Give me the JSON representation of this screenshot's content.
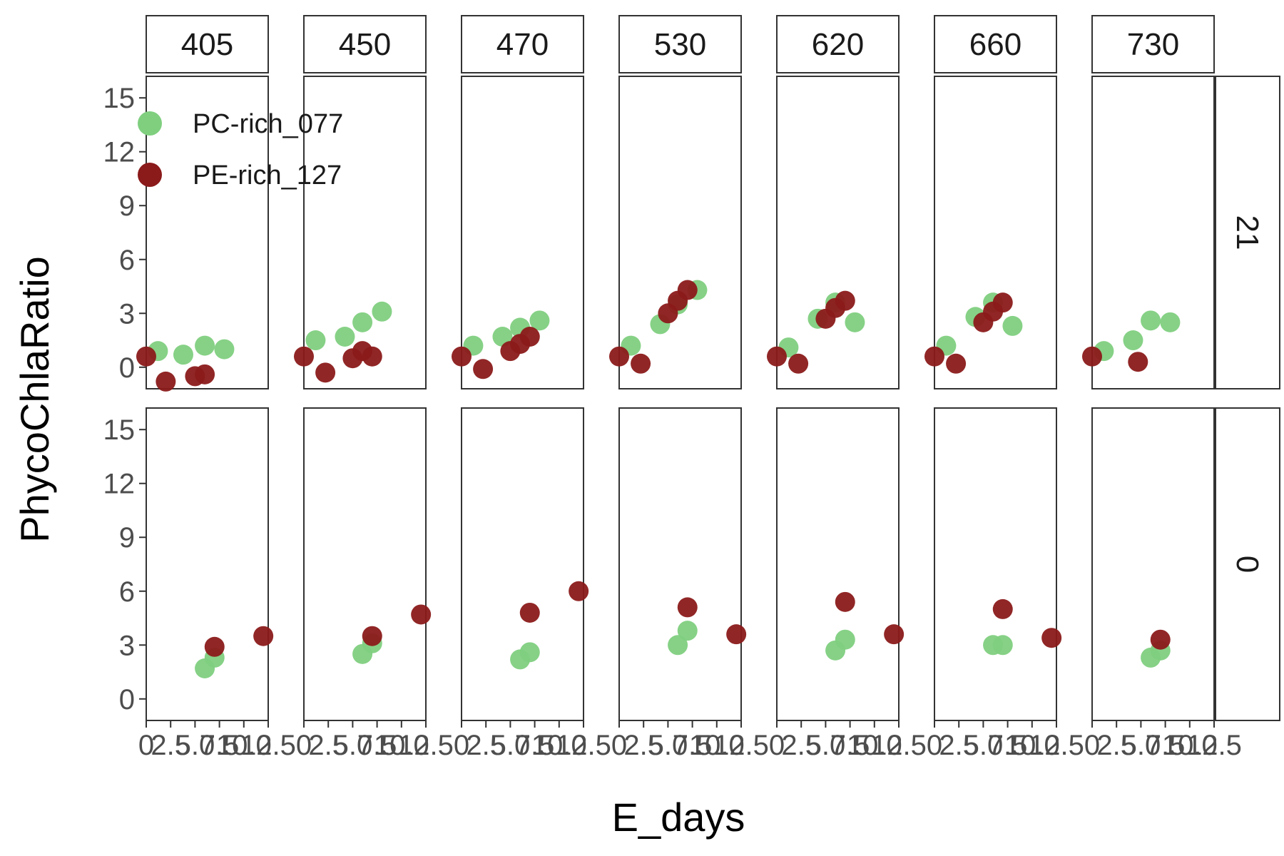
{
  "chart_data": {
    "type": "scatter",
    "xlabel": "E_days",
    "ylabel": "PhycoChlaRatio",
    "column_facets": [
      "405",
      "450",
      "470",
      "530",
      "620",
      "660",
      "730"
    ],
    "row_facets": [
      "21",
      "0"
    ],
    "xlim": [
      0,
      12.5
    ],
    "ylim": [
      -1.2,
      16.2
    ],
    "x_ticks": [
      0,
      2.5,
      5,
      7.5,
      10,
      12.5
    ],
    "x_tick_labels": [
      "0",
      "2.5",
      "5.0",
      "7.5",
      "10.0",
      "12.5"
    ],
    "y_ticks": [
      0,
      3,
      6,
      9,
      12,
      15
    ],
    "y_tick_labels": [
      "0",
      "3",
      "6",
      "9",
      "12",
      "15"
    ],
    "grid": false,
    "legend": {
      "placement": "top-left",
      "entries": [
        {
          "name": "PC-rich_077",
          "color": "#7fcf7f"
        },
        {
          "name": "PE-rich_127",
          "color": "#8b1a1a"
        }
      ]
    },
    "series": [
      {
        "name": "PC-rich_077",
        "color": "#7fcf7f",
        "panels": {
          "21": {
            "405": [
              [
                1.2,
                0.9
              ],
              [
                3.8,
                0.7
              ],
              [
                6.0,
                1.2
              ],
              [
                8.0,
                1.0
              ]
            ],
            "450": [
              [
                1.2,
                1.5
              ],
              [
                4.2,
                1.7
              ],
              [
                6.0,
                2.5
              ],
              [
                8.0,
                3.1
              ]
            ],
            "470": [
              [
                1.2,
                1.2
              ],
              [
                4.2,
                1.7
              ],
              [
                6.0,
                2.2
              ],
              [
                8.0,
                2.6
              ]
            ],
            "530": [
              [
                1.2,
                1.2
              ],
              [
                4.2,
                2.4
              ],
              [
                6.0,
                3.5
              ],
              [
                8.0,
                4.3
              ]
            ],
            "620": [
              [
                1.2,
                1.1
              ],
              [
                4.2,
                2.7
              ],
              [
                6.0,
                3.6
              ],
              [
                8.0,
                2.5
              ]
            ],
            "660": [
              [
                1.2,
                1.2
              ],
              [
                4.2,
                2.8
              ],
              [
                6.0,
                3.6
              ],
              [
                8.0,
                2.3
              ]
            ],
            "730": [
              [
                1.2,
                0.9
              ],
              [
                4.2,
                1.5
              ],
              [
                6.0,
                2.6
              ],
              [
                8.0,
                2.5
              ]
            ]
          },
          "0": {
            "405": [
              [
                6.0,
                1.7
              ],
              [
                7.0,
                2.3
              ]
            ],
            "450": [
              [
                6.0,
                2.5
              ],
              [
                7.0,
                3.1
              ]
            ],
            "470": [
              [
                6.0,
                2.2
              ],
              [
                7.0,
                2.6
              ]
            ],
            "530": [
              [
                6.0,
                3.0
              ],
              [
                7.0,
                3.8
              ]
            ],
            "620": [
              [
                6.0,
                2.7
              ],
              [
                7.0,
                3.3
              ]
            ],
            "660": [
              [
                6.0,
                3.0
              ],
              [
                7.0,
                3.0
              ]
            ],
            "730": [
              [
                6.0,
                2.3
              ],
              [
                7.0,
                2.7
              ]
            ]
          }
        }
      },
      {
        "name": "PE-rich_127",
        "color": "#8b1a1a",
        "panels": {
          "21": {
            "405": [
              [
                0.0,
                0.6
              ],
              [
                2.0,
                -0.8
              ],
              [
                5.0,
                -0.5
              ],
              [
                6.0,
                -0.4
              ]
            ],
            "450": [
              [
                0.0,
                0.6
              ],
              [
                2.2,
                -0.3
              ],
              [
                5.0,
                0.5
              ],
              [
                6.0,
                0.9
              ],
              [
                7.0,
                0.6
              ]
            ],
            "470": [
              [
                0.0,
                0.6
              ],
              [
                2.2,
                -0.1
              ],
              [
                5.0,
                0.9
              ],
              [
                6.0,
                1.3
              ],
              [
                7.0,
                1.7
              ]
            ],
            "530": [
              [
                0.0,
                0.6
              ],
              [
                2.2,
                0.2
              ],
              [
                5.0,
                3.0
              ],
              [
                6.0,
                3.7
              ],
              [
                7.0,
                4.3
              ]
            ],
            "620": [
              [
                0.0,
                0.6
              ],
              [
                2.2,
                0.2
              ],
              [
                5.0,
                2.7
              ],
              [
                6.0,
                3.3
              ],
              [
                7.0,
                3.7
              ]
            ],
            "660": [
              [
                0.0,
                0.6
              ],
              [
                2.2,
                0.2
              ],
              [
                5.0,
                2.5
              ],
              [
                6.0,
                3.1
              ],
              [
                7.0,
                3.6
              ]
            ],
            "730": [
              [
                0.0,
                0.6
              ],
              [
                4.7,
                0.3
              ]
            ]
          },
          "0": {
            "405": [
              [
                7.0,
                2.9
              ],
              [
                12.0,
                3.5
              ]
            ],
            "450": [
              [
                7.0,
                3.5
              ],
              [
                12.0,
                4.7
              ]
            ],
            "470": [
              [
                7.0,
                4.8
              ],
              [
                12.0,
                6.0
              ]
            ],
            "530": [
              [
                7.0,
                5.1
              ],
              [
                12.0,
                3.6
              ]
            ],
            "620": [
              [
                7.0,
                5.4
              ],
              [
                12.0,
                3.6
              ]
            ],
            "660": [
              [
                7.0,
                5.0
              ],
              [
                12.0,
                3.4
              ]
            ],
            "730": [
              [
                7.0,
                3.3
              ]
            ]
          }
        }
      }
    ]
  }
}
